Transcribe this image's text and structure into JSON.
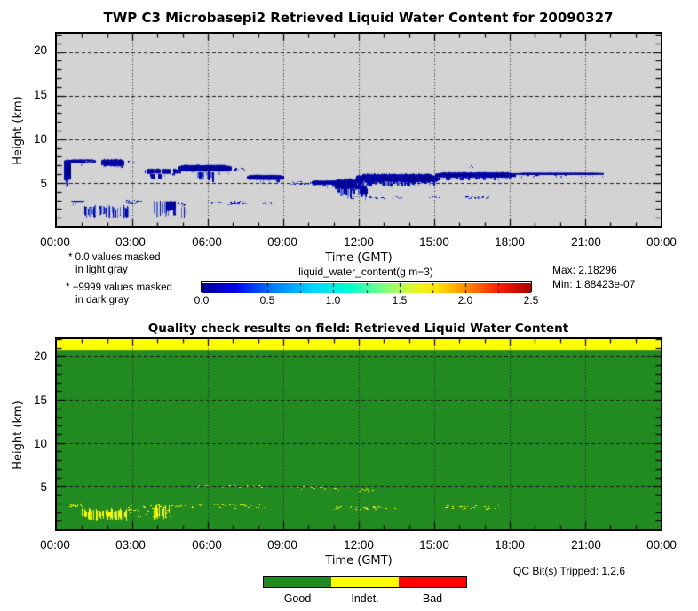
{
  "notes": {
    "masked_light_line1": "* 0.0 values masked",
    "masked_light_line2": "in light gray",
    "masked_dark_line1": "* −9999 values masked",
    "masked_dark_line2": "in dark gray"
  },
  "stats": {
    "max": "Max: 2.18296",
    "min": "Min: 1.88423e-07"
  },
  "qc_note": "QC Bit(s) Tripped: 1,2,6",
  "legend": {
    "items": [
      {
        "label": "Good",
        "color": "#218a21"
      },
      {
        "label": "Indet.",
        "color": "#ffff00"
      },
      {
        "label": "Bad",
        "color": "#ff0000"
      }
    ]
  },
  "colorbar": {
    "label": "liquid_water_content(g m−3)",
    "ticks": [
      "0.0",
      "0.5",
      "1.0",
      "1.5",
      "2.0",
      "2.5"
    ],
    "range": [
      0,
      2.5
    ],
    "stops": [
      {
        "p": 0,
        "c": "#000090"
      },
      {
        "p": 0.1,
        "c": "#0000f0"
      },
      {
        "p": 0.22,
        "c": "#0080ff"
      },
      {
        "p": 0.34,
        "c": "#00d8ff"
      },
      {
        "p": 0.45,
        "c": "#00ffd0"
      },
      {
        "p": 0.55,
        "c": "#7cff82"
      },
      {
        "p": 0.65,
        "c": "#e8f829"
      },
      {
        "p": 0.72,
        "c": "#ffe000"
      },
      {
        "p": 0.8,
        "c": "#ff9000"
      },
      {
        "p": 0.9,
        "c": "#ff2000"
      },
      {
        "p": 1,
        "c": "#a80000"
      }
    ]
  },
  "chart_data": [
    {
      "type": "heatmap",
      "title": "TWP C3 Microbasepi2 Retrieved Liquid Water Content for 20090327",
      "xlabel": "Time (GMT)",
      "ylabel": "Height (km)",
      "x_ticks": [
        "00:00",
        "03:00",
        "06:00",
        "09:00",
        "12:00",
        "15:00",
        "18:00",
        "21:00",
        "00:00"
      ],
      "x_range_hours": [
        0,
        24
      ],
      "y_ticks": [
        5,
        10,
        15,
        20
      ],
      "y_range_km": [
        0,
        22.1
      ],
      "grid": true,
      "background": "#d3d3d3",
      "max_value": 2.18296,
      "min_value": 1.88423e-07,
      "seed": 42,
      "cloud_colors": {
        "base": "#0006a8",
        "dark": "#000080",
        "light": "#5570cf"
      },
      "clouds": [
        {
          "type": "column",
          "t0": 0.28,
          "t1": 0.52,
          "h0": 5.15,
          "h1": 7.7
        },
        {
          "type": "streaks",
          "t0": 0.3,
          "t1": 0.45,
          "h0": 4.4,
          "h1": 5.2,
          "n": 3
        },
        {
          "type": "band",
          "t0": 0.45,
          "t1": 1.5,
          "h0": 7.25,
          "h1": 7.72,
          "ragged": 0.5
        },
        {
          "type": "dots",
          "t0": 1.05,
          "t1": 1.45,
          "h0": 7.35,
          "h1": 7.6,
          "n": 12
        },
        {
          "type": "band",
          "t0": 1.78,
          "t1": 2.65,
          "h0": 6.85,
          "h1": 7.78,
          "ragged": 0.6
        },
        {
          "type": "dots",
          "t0": 2.8,
          "t1": 3.1,
          "h0": 7.35,
          "h1": 7.55,
          "n": 5
        },
        {
          "type": "band",
          "t0": 3.5,
          "t1": 4.85,
          "h0": 6.0,
          "h1": 6.65,
          "ragged": 0.6,
          "gaps": 0.1
        },
        {
          "type": "virga",
          "t0": 3.6,
          "t1": 4.1,
          "h0": 5.35,
          "h1": 6.05,
          "n": 8
        },
        {
          "type": "band",
          "t0": 4.85,
          "t1": 6.9,
          "h0": 6.25,
          "h1": 7.1,
          "ragged": 0.55
        },
        {
          "type": "virga",
          "t0": 5.5,
          "t1": 6.3,
          "h0": 5.1,
          "h1": 6.25,
          "n": 14
        },
        {
          "type": "dots",
          "t0": 6.95,
          "t1": 7.45,
          "h0": 6.4,
          "h1": 6.75,
          "n": 16
        },
        {
          "type": "band",
          "t0": 7.55,
          "t1": 9.0,
          "h0": 5.3,
          "h1": 5.95,
          "ragged": 0.5
        },
        {
          "type": "dots",
          "t0": 9.25,
          "t1": 10.1,
          "h0": 4.85,
          "h1": 5.2,
          "n": 26
        },
        {
          "type": "band",
          "t0": 10.1,
          "t1": 11.35,
          "h0": 4.75,
          "h1": 5.3,
          "ragged": 0.55,
          "gaps": 0.08
        },
        {
          "type": "band",
          "t0": 11.05,
          "t1": 12.1,
          "h0": 4.1,
          "h1": 5.55,
          "ragged": 0.7
        },
        {
          "type": "virga",
          "t0": 11.2,
          "t1": 12.0,
          "h0": 3.4,
          "h1": 4.3,
          "n": 10
        },
        {
          "type": "band",
          "t0": 12.05,
          "t1": 12.3,
          "h0": 3.3,
          "h1": 4.9,
          "ragged": 0.85
        },
        {
          "type": "band",
          "t0": 11.9,
          "t1": 15.1,
          "h0": 4.95,
          "h1": 6.1,
          "ragged": 0.6
        },
        {
          "type": "virga",
          "t0": 12.0,
          "t1": 15.0,
          "h0": 4.55,
          "h1": 5.15,
          "n": 26
        },
        {
          "type": "band",
          "t0": 15.05,
          "t1": 18.2,
          "h0": 5.55,
          "h1": 6.25,
          "ragged": 0.5
        },
        {
          "type": "virga",
          "t0": 15.1,
          "t1": 18.0,
          "h0": 5.3,
          "h1": 5.65,
          "n": 14
        },
        {
          "type": "dots",
          "t0": 16.3,
          "t1": 16.5,
          "h0": 6.8,
          "h1": 7.05,
          "n": 4
        },
        {
          "type": "band",
          "t0": 18.2,
          "t1": 21.7,
          "h0": 5.9,
          "h1": 6.18,
          "ragged": 0.3
        },
        {
          "type": "band",
          "t0": 0.55,
          "t1": 1.05,
          "h0": 2.72,
          "h1": 2.95,
          "ragged": 0.25
        },
        {
          "type": "streaks",
          "t0": 0.95,
          "t1": 2.85,
          "h0": 0.85,
          "h1": 2.45,
          "n": 55
        },
        {
          "type": "dots",
          "t0": 2.7,
          "t1": 3.35,
          "h0": 2.62,
          "h1": 3.05,
          "n": 30
        },
        {
          "type": "streaks",
          "t0": 3.85,
          "t1": 4.4,
          "h0": 1.1,
          "h1": 3.0,
          "n": 24
        },
        {
          "type": "column",
          "t0": 4.35,
          "t1": 4.7,
          "h0": 1.7,
          "h1": 2.95
        },
        {
          "type": "dots",
          "t0": 4.75,
          "t1": 5.15,
          "h0": 2.35,
          "h1": 2.75,
          "n": 8
        },
        {
          "type": "streaks",
          "t0": 4.95,
          "t1": 5.2,
          "h0": 0.8,
          "h1": 2.3,
          "n": 5
        },
        {
          "type": "dots",
          "t0": 6.15,
          "t1": 6.5,
          "h0": 2.6,
          "h1": 2.9,
          "n": 10
        },
        {
          "type": "dots",
          "t0": 6.8,
          "t1": 7.6,
          "h0": 2.55,
          "h1": 2.95,
          "n": 26
        },
        {
          "type": "dots",
          "t0": 8.15,
          "t1": 8.5,
          "h0": 2.6,
          "h1": 2.85,
          "n": 8
        },
        {
          "type": "dots",
          "t0": 11.5,
          "t1": 11.9,
          "h0": 3.25,
          "h1": 3.45,
          "n": 8
        },
        {
          "type": "dots",
          "t0": 12.4,
          "t1": 13.1,
          "h0": 3.25,
          "h1": 3.45,
          "n": 14
        },
        {
          "type": "dots",
          "t0": 13.3,
          "t1": 13.8,
          "h0": 3.25,
          "h1": 3.45,
          "n": 8
        },
        {
          "type": "dots",
          "t0": 14.75,
          "t1": 15.25,
          "h0": 3.3,
          "h1": 3.5,
          "n": 8
        },
        {
          "type": "dots",
          "t0": 16.2,
          "t1": 16.5,
          "h0": 3.2,
          "h1": 3.45,
          "n": 10
        },
        {
          "type": "dots",
          "t0": 16.6,
          "t1": 17.2,
          "h0": 3.2,
          "h1": 3.45,
          "n": 16
        }
      ]
    },
    {
      "type": "heatmap",
      "title": "Quality check results on field: Retrieved Liquid Water Content",
      "xlabel": "Time (GMT)",
      "ylabel": "Height (km)",
      "x_ticks": [
        "00:00",
        "03:00",
        "06:00",
        "09:00",
        "12:00",
        "15:00",
        "18:00",
        "21:00",
        "00:00"
      ],
      "x_range_hours": [
        0,
        24
      ],
      "y_ticks": [
        5,
        10,
        15,
        20
      ],
      "y_range_km": [
        0,
        22.0
      ],
      "grid": true,
      "good_color": "#218a21",
      "indet_color": "#ffff00",
      "bad_color": "#ff0000",
      "indet_top_band_km": [
        20.75,
        22.0
      ],
      "speckle_color": "#ffff00",
      "seed": 7,
      "speckles": [
        {
          "type": "dots",
          "t0": 0.5,
          "t1": 1.1,
          "h0": 2.65,
          "h1": 2.95,
          "n": 14
        },
        {
          "type": "streaks",
          "t0": 0.95,
          "t1": 2.85,
          "h0": 0.85,
          "h1": 2.45,
          "n": 48
        },
        {
          "type": "dots",
          "t0": 2.6,
          "t1": 4.5,
          "h0": 1.4,
          "h1": 3.2,
          "n": 40
        },
        {
          "type": "streaks",
          "t0": 3.85,
          "t1": 4.45,
          "h0": 1.1,
          "h1": 2.9,
          "n": 15
        },
        {
          "type": "dots",
          "t0": 4.5,
          "t1": 8.3,
          "h0": 2.5,
          "h1": 3.0,
          "n": 38
        },
        {
          "type": "dots",
          "t0": 5.2,
          "t1": 8.2,
          "h0": 4.85,
          "h1": 5.15,
          "n": 20
        },
        {
          "type": "dots",
          "t0": 9.4,
          "t1": 11.6,
          "h0": 4.55,
          "h1": 5.1,
          "n": 20
        },
        {
          "type": "dots",
          "t0": 10.7,
          "t1": 14.1,
          "h0": 2.35,
          "h1": 2.7,
          "n": 28
        },
        {
          "type": "dots",
          "t0": 11.9,
          "t1": 12.7,
          "h0": 4.35,
          "h1": 4.9,
          "n": 10
        },
        {
          "type": "dots",
          "t0": 15.2,
          "t1": 17.6,
          "h0": 2.35,
          "h1": 2.8,
          "n": 25
        }
      ]
    }
  ]
}
